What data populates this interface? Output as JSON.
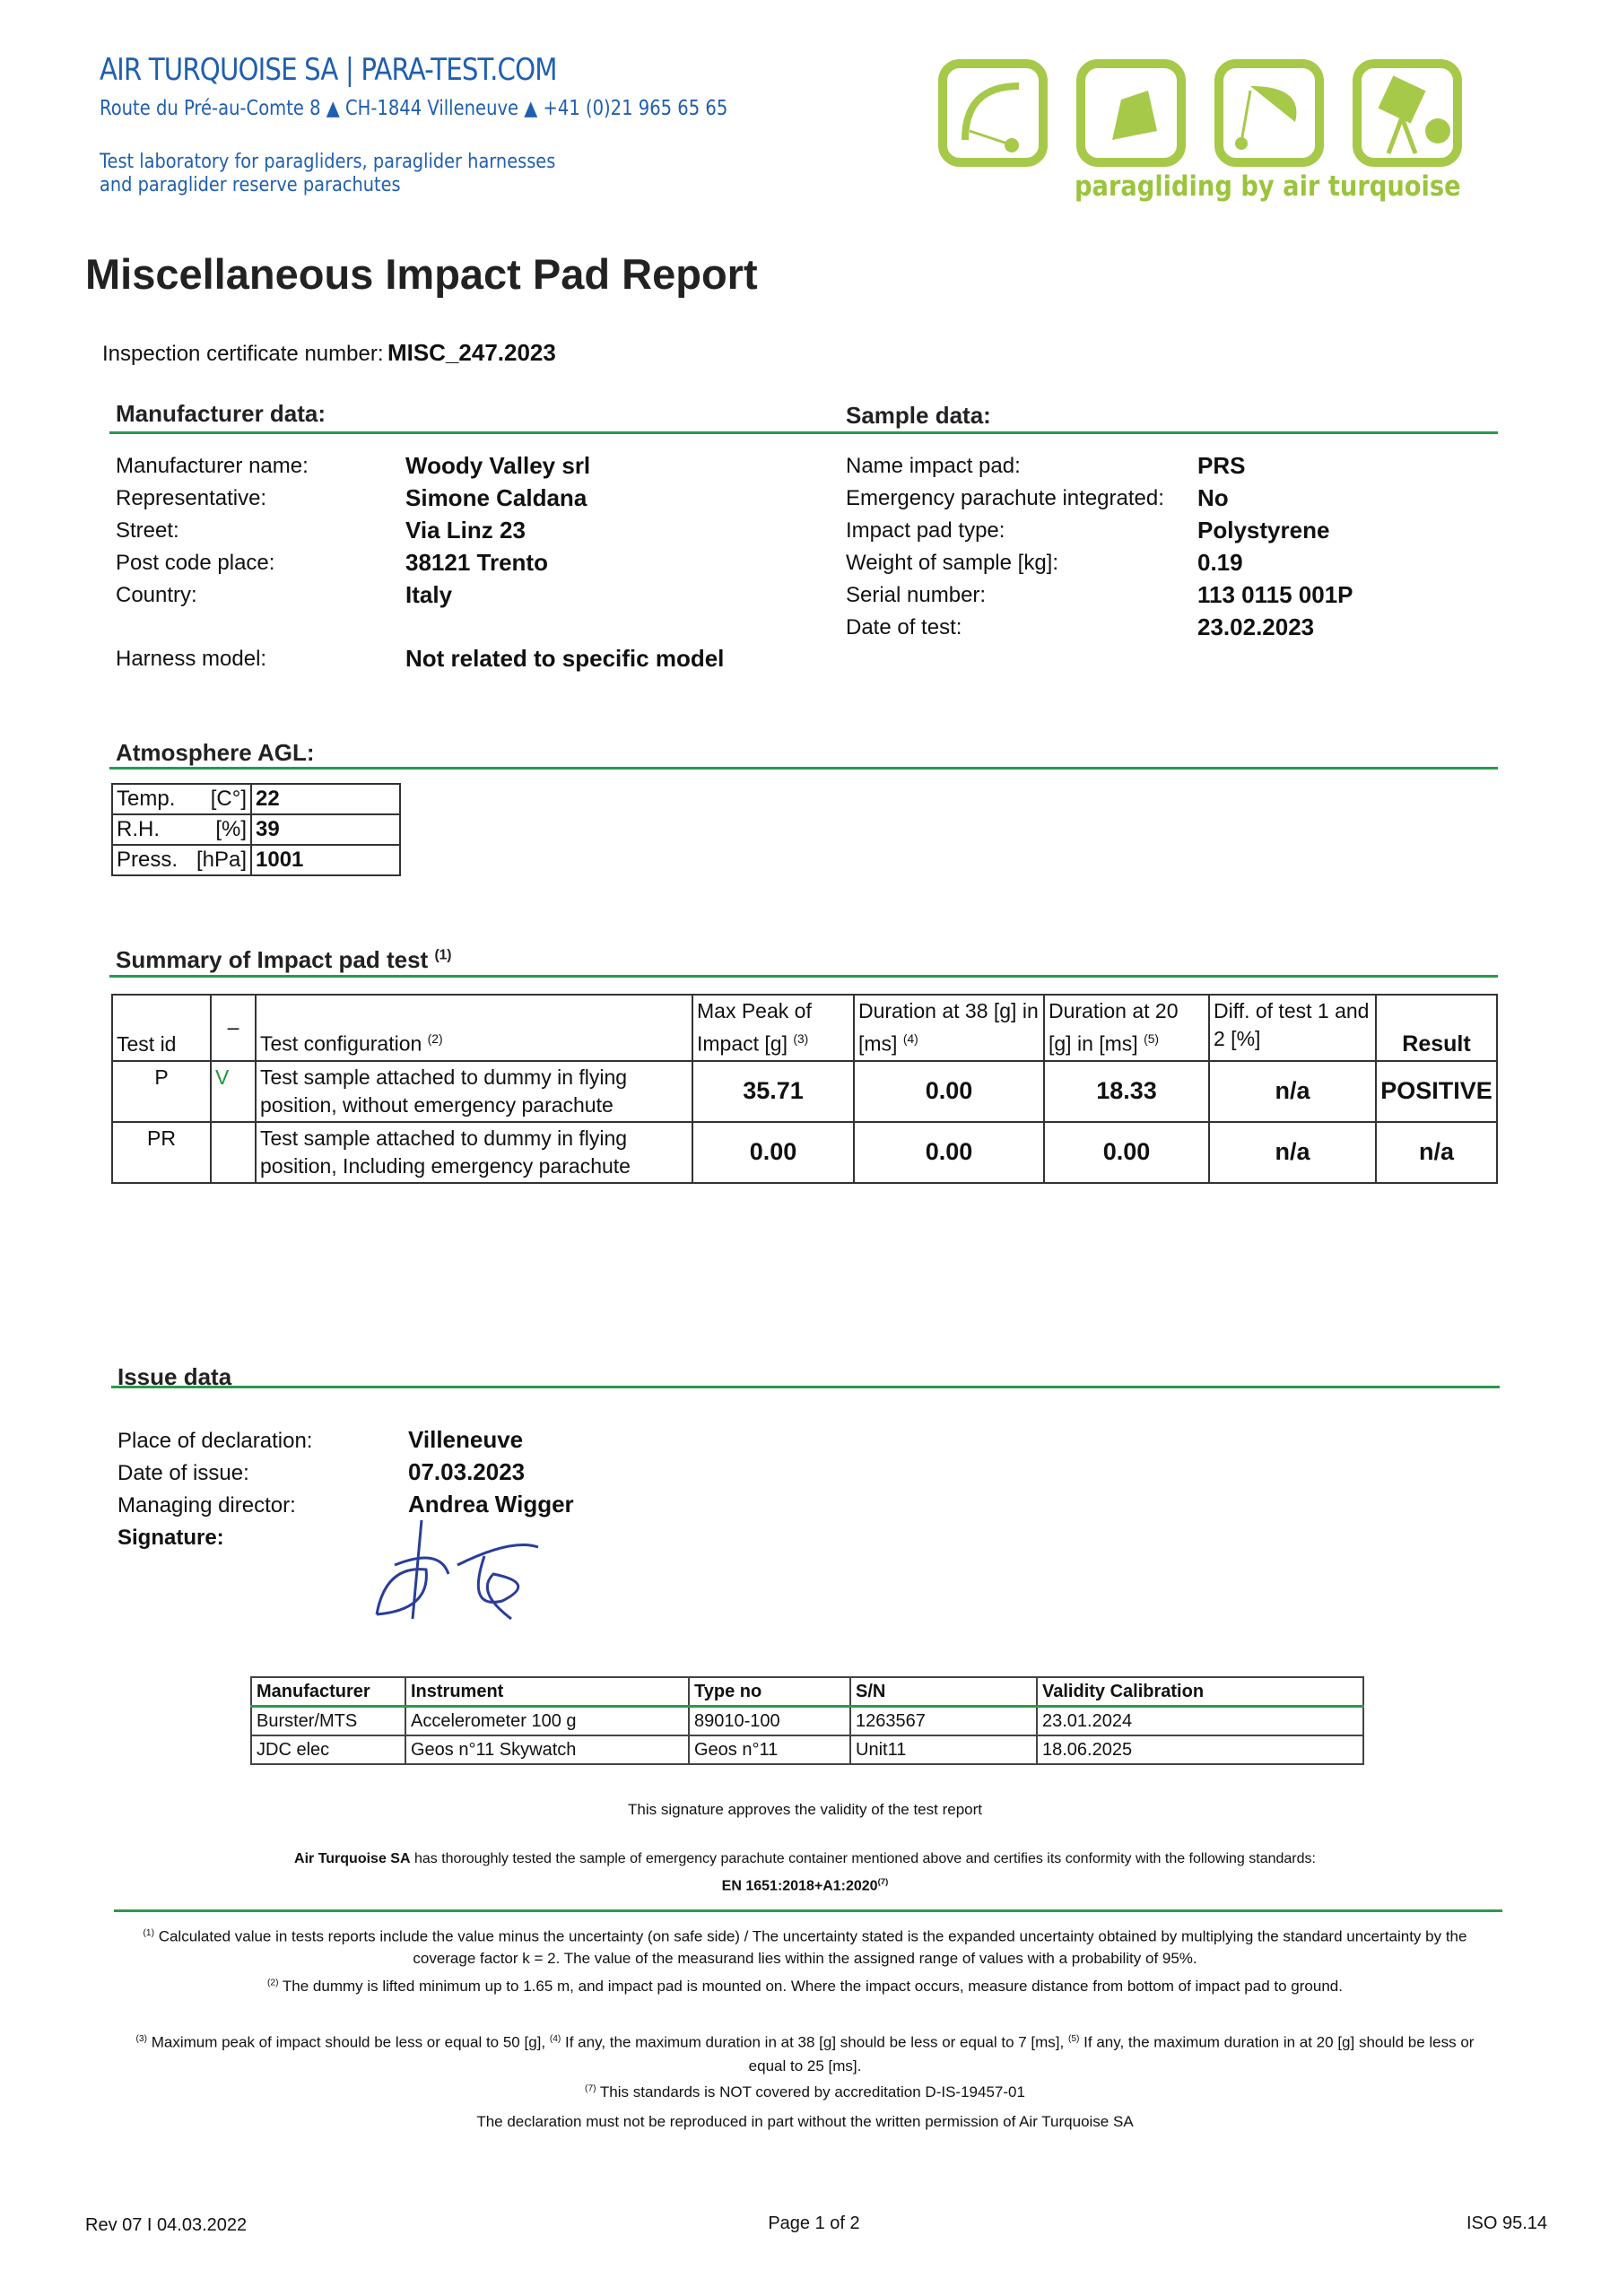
{
  "header": {
    "company": "AIR TURQUOISE SA | PARA-TEST.COM",
    "address": "Route du Pré-au-Comte 8 ▲ CH-1844 Villeneuve ▲ +41 (0)21 965 65 65",
    "lab_line1": "Test laboratory for paragliders, paraglider harnesses",
    "lab_line2": "and paraglider reserve parachutes",
    "logo_tagline": "paragliding by air turquoise",
    "logo_icons": [
      "paraglider-icon",
      "harness-icon",
      "reserve-parachute-icon",
      "camera-tripod-icon"
    ],
    "brand_blue": "#1f5fb0",
    "brand_green": "#a7c94a"
  },
  "title": "Miscellaneous Impact Pad Report",
  "certificate": {
    "label": "Inspection certificate number:",
    "value": "MISC_247.2023"
  },
  "manufacturer": {
    "heading": "Manufacturer data:",
    "rows": [
      {
        "label": "Manufacturer name:",
        "value": "Woody Valley srl"
      },
      {
        "label": "Representative:",
        "value": "Simone Caldana"
      },
      {
        "label": "Street:",
        "value": "Via Linz 23"
      },
      {
        "label": "Post code place:",
        "value": "38121 Trento"
      },
      {
        "label": "Country:",
        "value": "Italy"
      }
    ],
    "harness": {
      "label": "Harness model:",
      "value": "Not related to specific model"
    }
  },
  "sample": {
    "heading": "Sample data:",
    "rows": [
      {
        "label": "Name impact pad:",
        "value": "PRS"
      },
      {
        "label": "Emergency parachute integrated:",
        "value": "No"
      },
      {
        "label": "Impact pad type:",
        "value": "Polystyrene"
      },
      {
        "label": "Weight of sample [kg]:",
        "value": "0.19"
      },
      {
        "label": "Serial number:",
        "value": "113 0115 001P"
      },
      {
        "label": "Date of test:",
        "value": "23.02.2023"
      }
    ]
  },
  "atmosphere": {
    "heading": "Atmosphere AGL:",
    "rows": [
      {
        "label": "Temp.",
        "unit": "[C°]",
        "value": "22"
      },
      {
        "label": "R.H.",
        "unit": "[%]",
        "value": "39"
      },
      {
        "label": "Press.",
        "unit": "[hPa]",
        "value": "1001"
      }
    ]
  },
  "summary": {
    "heading": "Summary of Impact pad test",
    "heading_sup": "(1)",
    "columns": [
      {
        "label": "Test id",
        "sup": ""
      },
      {
        "label": "–",
        "sup": ""
      },
      {
        "label": "Test configuration",
        "sup": "(2)"
      },
      {
        "label": "Max Peak of Impact [g]",
        "sup": "(3)"
      },
      {
        "label": "Duration at 38 [g] in [ms]",
        "sup": "(4)"
      },
      {
        "label": "Duration at 20 [g] in [ms]",
        "sup": "(5)"
      },
      {
        "label": "Diff. of test 1 and 2 [%]",
        "sup": ""
      },
      {
        "label": "Result",
        "sup": ""
      }
    ],
    "rows": [
      {
        "id": "P",
        "check": "V",
        "config": "Test sample attached to dummy in flying position, without emergency parachute",
        "max_peak": "35.71",
        "dur38": "0.00",
        "dur20": "18.33",
        "diff": "n/a",
        "result": "POSITIVE"
      },
      {
        "id": "PR",
        "check": "",
        "config": "Test sample attached to dummy in flying position, Including emergency parachute",
        "max_peak": "0.00",
        "dur38": "0.00",
        "dur20": "0.00",
        "diff": "n/a",
        "result": "n/a"
      }
    ]
  },
  "issue": {
    "heading": "Issue data",
    "rows": [
      {
        "label": "Place of declaration:",
        "value": "Villeneuve"
      },
      {
        "label": "Date of issue:",
        "value": "07.03.2023"
      },
      {
        "label": "Managing director:",
        "value": "Andrea Wigger"
      }
    ],
    "signature_label": "Signature:"
  },
  "instruments": {
    "columns": [
      "Manufacturer",
      "Instrument",
      "Type no",
      "S/N",
      "Validity Calibration"
    ],
    "rows": [
      [
        "Burster/MTS",
        "Accelerometer 100 g",
        "89010-100",
        "1263567",
        "23.01.2024"
      ],
      [
        "JDC elec",
        "Geos n°11 Skywatch",
        "Geos n°11",
        "Unit11",
        "18.06.2025"
      ]
    ]
  },
  "signature_note": "This signature approves the validity of the test report",
  "certification": {
    "company": "Air Turquoise SA",
    "text": " has thoroughly tested the sample of emergency parachute container mentioned above and certifies its conformity with the following standards:",
    "standard": "EN 1651:2018+A1:2020",
    "standard_sup": "(7)"
  },
  "footnotes": {
    "fn1_sup": "(1)",
    "fn1": " Calculated value in tests reports include the value minus the uncertainty (on safe side) / The uncertainty stated is the expanded uncertainty obtained by multiplying the standard uncertainty by the coverage factor k = 2. The value of the measurand lies within the assigned range of values with a probability of 95%.",
    "fn2_sup": "(2)",
    "fn2": " The dummy is lifted minimum up to 1.65 m, and impact pad is mounted on. Where the impact occurs, measure distance from bottom of impact pad to ground.",
    "fn3_sup": "(3)",
    "fn3": " Maximum peak of impact should be less or equal to 50 [g], ",
    "fn4_sup": "(4)",
    "fn4": " If any, the maximum duration in at 38 [g] should be less or equal to 7 [ms], ",
    "fn5_sup": "(5)",
    "fn5": " If any, the maximum duration in at 20 [g] should be less or equal to 25 [ms].",
    "fn7_sup": "(7)",
    "fn7": " This standards is NOT covered by accreditation D-IS-19457-01",
    "declaration": "The declaration must not be reproduced in part without the written permission of Air Turquoise SA"
  },
  "footer": {
    "revision": "Rev 07 I 04.03.2022",
    "page": "Page 1 of 2",
    "iso": "ISO 95.14"
  }
}
